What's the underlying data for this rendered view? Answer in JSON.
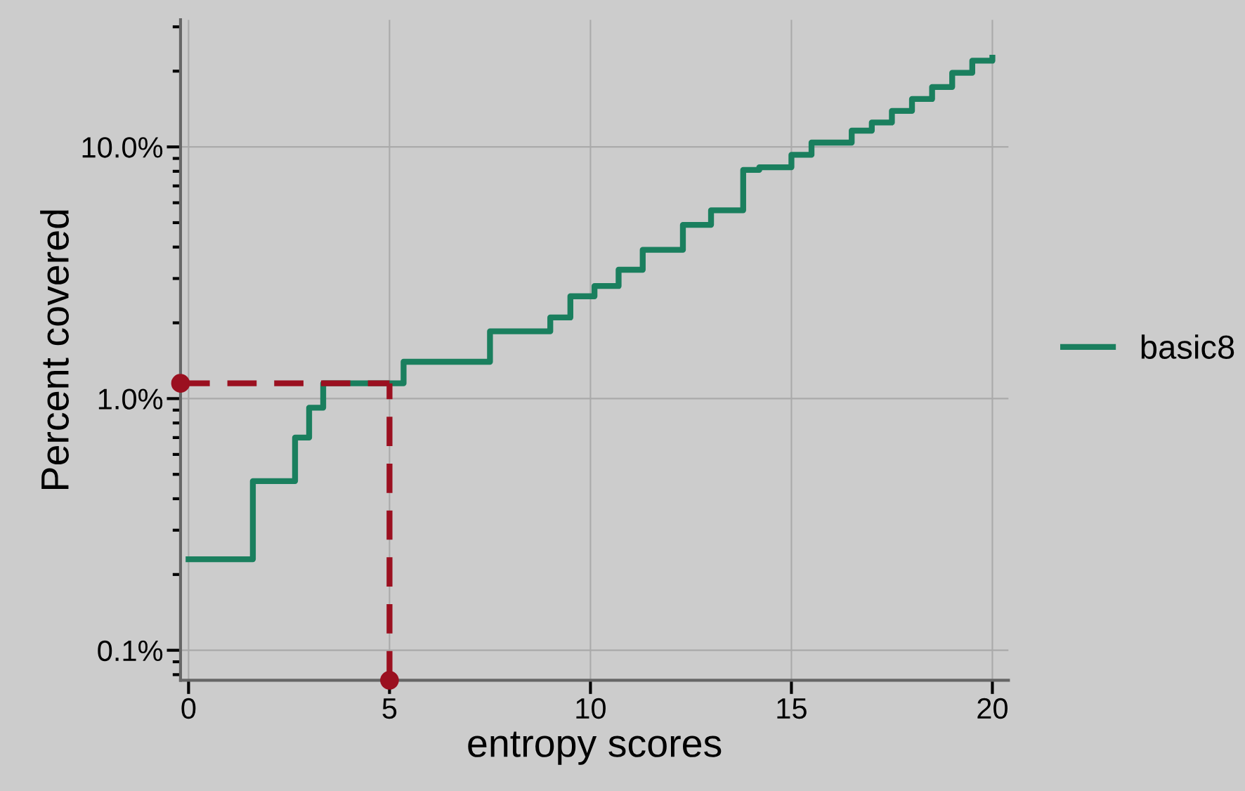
{
  "chart_data": {
    "type": "step",
    "xlabel": "entropy scores",
    "ylabel": "Percent covered",
    "log": "y",
    "grid": true,
    "legend": "right",
    "xlim": [
      -0.2,
      20.4
    ],
    "ylim": [
      0.076,
      32
    ],
    "xticks": [
      0,
      5,
      10,
      15,
      20
    ],
    "yticks": [
      {
        "value": 0.1,
        "label": "0.1%"
      },
      {
        "value": 1,
        "label": "1.0%"
      },
      {
        "value": 10,
        "label": "10.0%"
      }
    ],
    "series": [
      {
        "name": "basic8",
        "color": "#1a7f5e",
        "x": [
          0,
          1.6,
          2.65,
          3.0,
          3.35,
          5.35,
          7.5,
          9.0,
          9.5,
          10.1,
          10.7,
          11.3,
          12.3,
          13.0,
          13.8,
          14.2,
          15.0,
          15.5,
          16.5,
          17.0,
          17.5,
          18.0,
          18.5,
          19.0,
          19.5,
          20.0
        ],
        "values": [
          0.23,
          0.47,
          0.7,
          0.92,
          1.15,
          1.4,
          1.85,
          2.1,
          2.55,
          2.8,
          3.25,
          3.9,
          4.9,
          5.6,
          8.1,
          8.3,
          9.3,
          10.4,
          11.6,
          12.5,
          13.9,
          15.5,
          17.3,
          19.7,
          22.0,
          22.6
        ]
      },
      {
        "type": "scatter",
        "color": "#9b1020",
        "x": [
          -0.2,
          5
        ],
        "values": [
          1.15,
          0.076
        ]
      }
    ],
    "ref_lines": [
      {
        "axis": "x",
        "value": 5,
        "color": "#9b1020",
        "line_style": "dashed"
      },
      {
        "axis": "y",
        "value": 1.15,
        "color": "#9b1020",
        "line_style": "dashed"
      }
    ]
  }
}
